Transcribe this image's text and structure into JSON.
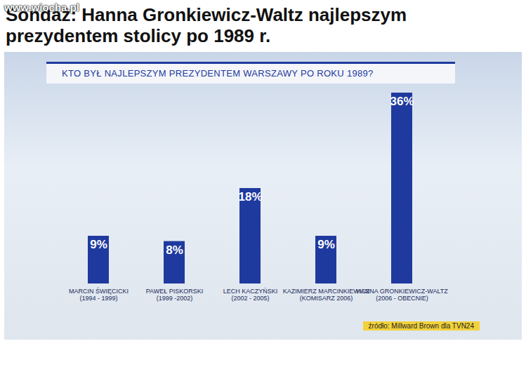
{
  "chart_data": {
    "type": "bar",
    "watermark": "www.wiocha.pl",
    "title": "Sondaż: Hanna Gronkiewicz-Waltz najlepszym prezydentem stolicy po 1989 r.",
    "subtitle": "KTO BYŁ NAJLEPSZYM PREZYDENTEM WARSZAWY PO ROKU 1989?",
    "categories": [
      "MARCIN ŚWIĘCICKI\n(1994 - 1999)",
      "PAWEŁ PISKORSKI\n(1999 -2002)",
      "LECH KACZYŃSKI\n(2002 - 2005)",
      "KAZIMIERZ MARCINKIEWICZ\n(KOMISARZ 2006)",
      "HANNA GRONKIEWICZ-WALTZ\n(2006 - OBECNIE)"
    ],
    "values": [
      9,
      8,
      18,
      9,
      36
    ],
    "value_labels": [
      "9%",
      "8%",
      "18%",
      "9%",
      "36%"
    ],
    "color": "#1f3a9e",
    "data_labels": true,
    "tick_labels": "x",
    "source": "źródło: Millward Brown dla TVN24"
  }
}
